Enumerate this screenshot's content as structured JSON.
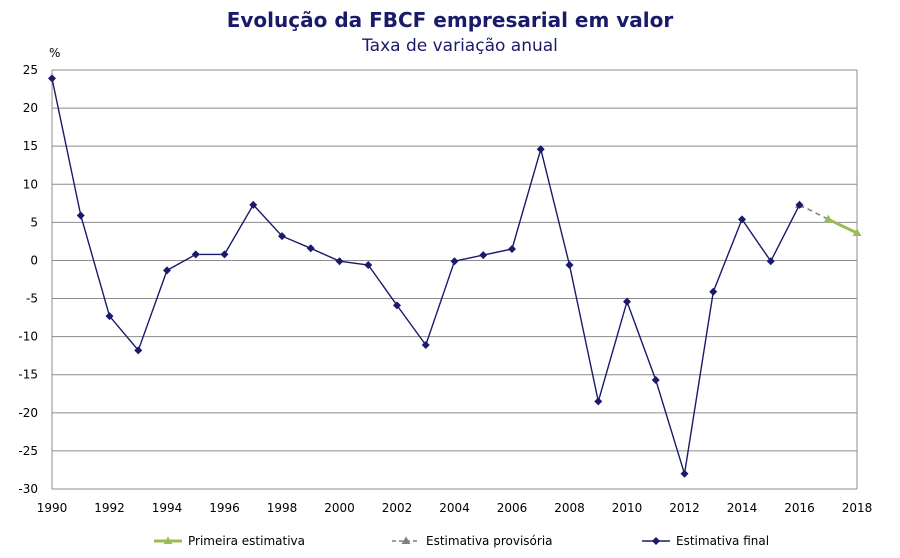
{
  "chart_data": {
    "type": "line",
    "title": "Evolução da FBCF empresarial  em valor",
    "subtitle": "Taxa de variação anual",
    "ylabel": "%",
    "ylim": [
      -30,
      25
    ],
    "xlim": [
      1990,
      2018
    ],
    "y_ticks": [
      25,
      20,
      15,
      10,
      5,
      0,
      -5,
      -10,
      -15,
      -20,
      -25,
      -30
    ],
    "x_ticks": [
      1990,
      1992,
      1994,
      1996,
      1998,
      2000,
      2002,
      2004,
      2006,
      2008,
      2010,
      2012,
      2014,
      2016,
      2018
    ],
    "grid": true,
    "legend_position": "bottom",
    "series": [
      {
        "name": "Primeira estimativa",
        "color": "#9bbb59",
        "style": "solid",
        "marker": "triangle",
        "x": [
          2017,
          2018
        ],
        "y": [
          5.4,
          3.6
        ]
      },
      {
        "name": "Estimativa provisória",
        "color": "#7f7f7f",
        "style": "dashed",
        "marker": "triangle",
        "x": [
          2016,
          2017
        ],
        "y": [
          7.3,
          5.4
        ]
      },
      {
        "name": "Estimativa final",
        "color": "#1a1a6b",
        "style": "solid",
        "marker": "diamond",
        "x": [
          1990,
          1991,
          1992,
          1993,
          1994,
          1995,
          1996,
          1997,
          1998,
          1999,
          2000,
          2001,
          2002,
          2003,
          2004,
          2005,
          2006,
          2007,
          2008,
          2009,
          2010,
          2011,
          2012,
          2013,
          2014,
          2015,
          2016
        ],
        "y": [
          23.9,
          5.9,
          -7.3,
          -11.8,
          -1.3,
          0.8,
          0.8,
          7.3,
          3.2,
          1.6,
          -0.1,
          -0.6,
          -5.9,
          -11.1,
          -0.1,
          0.7,
          1.5,
          14.6,
          -0.6,
          -18.5,
          -5.4,
          -15.7,
          -28.0,
          -4.1,
          5.4,
          -0.1,
          7.3
        ]
      }
    ]
  }
}
